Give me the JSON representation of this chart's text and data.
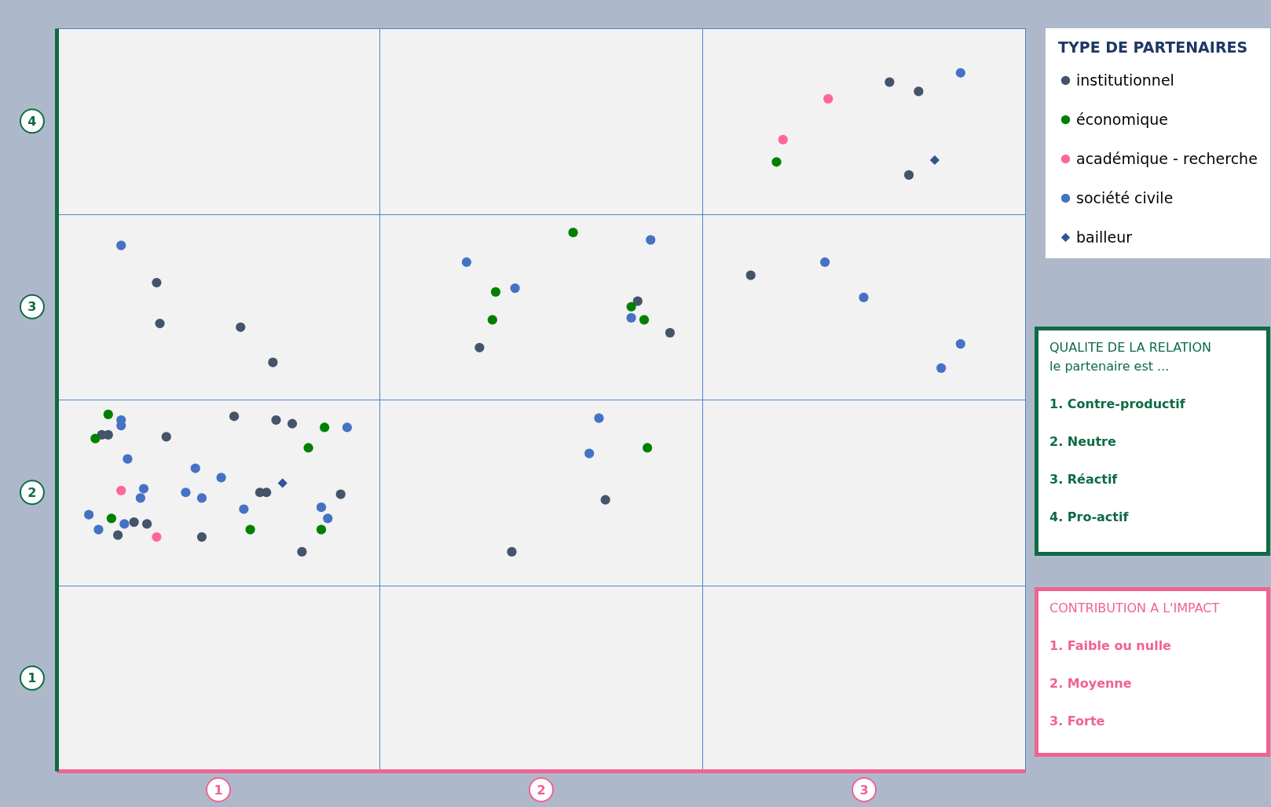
{
  "chart_data": {
    "type": "scatter",
    "legend_title": "TYPE DE PARTENAIRES",
    "legend": "right",
    "grid": true,
    "xlabel": "CONTRIBUTION A L'IMPACT",
    "ylabel": "QUALITE DE LA RELATION",
    "xlim": [
      0.5,
      3.5
    ],
    "xticks": [
      {
        "value": 0.5,
        "label": null
      },
      1,
      {
        "value": 1.5,
        "label": null
      },
      2,
      {
        "value": 2.5,
        "label": null
      },
      3,
      {
        "value": 3.5,
        "label": null
      }
    ],
    "ylim": [
      0.5,
      4.5
    ],
    "yticks": [
      {
        "value": 0.5,
        "label": null
      },
      1,
      {
        "value": 1.5,
        "label": null
      },
      2,
      {
        "value": 2.5,
        "label": null
      },
      3,
      {
        "value": 3.5,
        "label": null
      },
      4,
      {
        "value": 4.5,
        "label": null
      }
    ],
    "annotations": [
      "le partenaire est  ...",
      "1. Contre-productif",
      "2. Neutre",
      "3. Réactif",
      "4. Pro-actif",
      "1. Faible ou nulle",
      "2. Moyenne",
      "3. Forte"
    ],
    "series": [
      {
        "name": "institutionnel",
        "color": "#44546a",
        "marker": "circle",
        "x": [
          3.08,
          3.17,
          3.14,
          2.65,
          0.81,
          0.82,
          1.07,
          1.17,
          2.3,
          2.4,
          1.81,
          1.05,
          1.18,
          1.23,
          0.84,
          0.64,
          0.66,
          1.13,
          1.15,
          1.38,
          0.74,
          0.78,
          0.69,
          0.95,
          1.26,
          2.2,
          1.91
        ],
        "values": [
          4.21,
          4.16,
          3.71,
          3.17,
          3.13,
          2.91,
          2.89,
          2.7,
          3.03,
          2.86,
          2.78,
          2.41,
          2.39,
          2.37,
          2.3,
          2.31,
          2.31,
          2.0,
          2.0,
          1.99,
          1.84,
          1.83,
          1.77,
          1.76,
          1.68,
          1.96,
          1.68
        ]
      },
      {
        "name": "économique",
        "color": "#008000",
        "marker": "circle",
        "x": [
          2.73,
          2.1,
          1.86,
          1.85,
          2.28,
          2.32,
          0.66,
          0.62,
          1.33,
          1.28,
          0.67,
          1.1,
          1.32,
          2.33
        ],
        "values": [
          3.78,
          3.4,
          3.08,
          2.93,
          3.0,
          2.93,
          2.42,
          2.29,
          2.35,
          2.24,
          1.86,
          1.8,
          1.8,
          2.24
        ]
      },
      {
        "name": "académique - recherche",
        "color": "#ff6699",
        "marker": "circle",
        "x": [
          2.89,
          2.75,
          0.7,
          0.81
        ],
        "values": [
          4.12,
          3.9,
          2.01,
          1.76
        ]
      },
      {
        "name": "société civile",
        "color": "#4472c4",
        "marker": "circle",
        "x": [
          3.3,
          0.7,
          2.34,
          1.77,
          1.92,
          2.28,
          2.88,
          3.0,
          3.3,
          3.24,
          0.7,
          0.7,
          1.4,
          0.72,
          0.93,
          1.01,
          0.77,
          0.76,
          0.9,
          0.95,
          1.08,
          0.6,
          1.32,
          1.34,
          0.71,
          0.63,
          2.18,
          2.15
        ],
        "values": [
          4.26,
          3.33,
          3.36,
          3.24,
          3.1,
          2.94,
          3.24,
          3.05,
          2.8,
          2.67,
          2.39,
          2.36,
          2.35,
          2.18,
          2.13,
          2.08,
          2.02,
          1.97,
          2.0,
          1.97,
          1.91,
          1.88,
          1.92,
          1.86,
          1.83,
          1.8,
          2.4,
          2.21
        ]
      },
      {
        "name": "bailleur",
        "color": "#2f5597",
        "marker": "diamond",
        "x": [
          3.22,
          1.2
        ],
        "values": [
          3.79,
          2.05
        ]
      }
    ]
  }
}
